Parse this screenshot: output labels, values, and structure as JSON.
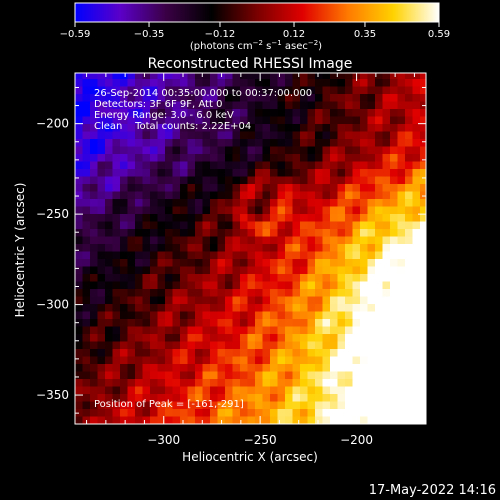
{
  "chart_data": {
    "type": "heatmap",
    "title": "Reconstructed RHESSI Image",
    "xlabel": "Heliocentric X (arcsec)",
    "ylabel": "Heliocentric Y (arcsec)",
    "xlim": [
      -346,
      -164
    ],
    "ylim": [
      -366,
      -172
    ],
    "xticks": [
      -300,
      -250,
      -200
    ],
    "yticks": [
      -350,
      -300,
      -250,
      -200
    ],
    "colorbar": {
      "range": [
        -0.59,
        0.59
      ],
      "ticks": [
        -0.59,
        -0.35,
        -0.12,
        0.12,
        0.35,
        0.59
      ],
      "tick_labels": [
        "−0.59",
        "−0.35",
        "−0.12",
        "0.12",
        "0.35",
        "0.59"
      ],
      "units_html": "(photons cm⁻² s⁻¹ asec⁻²)",
      "colors": [
        "#0000ff",
        "#5b00c8",
        "#3a0045",
        "#000000",
        "#7a0000",
        "#e00000",
        "#ff7a00",
        "#ffd200",
        "#ffffff"
      ]
    },
    "annotations": [
      "26-Sep-2014 00:35:00.000 to 00:37:00.000",
      "Detectors: 3F 6F 9F, Att 0",
      "Energy Range: 3.0 - 6.0 keV",
      "Clean    Total counts: 2.22E+04"
    ],
    "peak_label": "Position of Peak = [-161,-291]",
    "peak": [
      -161,
      -291
    ],
    "grid": "off",
    "legend": "colorbar-top"
  },
  "footer_date": "17-May-2022 14:16"
}
